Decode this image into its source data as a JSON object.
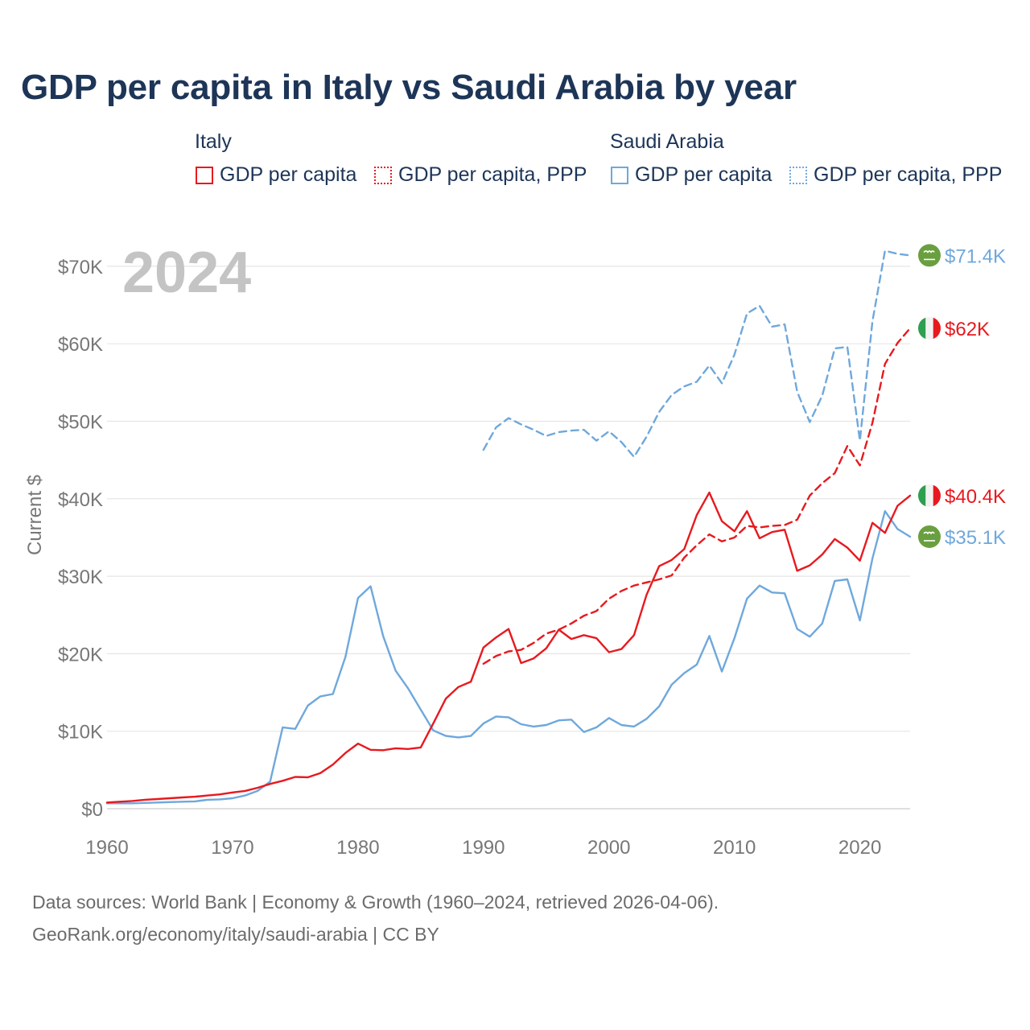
{
  "title": "GDP per capita in Italy vs Saudi Arabia by year",
  "legend": {
    "groups": [
      {
        "name": "Italy",
        "items": [
          "GDP per capita",
          "GDP per capita, PPP"
        ]
      },
      {
        "name": "Saudi Arabia",
        "items": [
          "GDP per capita",
          "GDP per capita, PPP"
        ]
      }
    ]
  },
  "colors": {
    "italy": "#e8191e",
    "saudi": "#6fa8dc",
    "saudi_flag": "#6a9f3f",
    "italy_flag_green": "#2e9e4f"
  },
  "year_watermark": "2024",
  "footer": {
    "line1": "Data sources: World Bank | Economy & Growth (1960–2024, retrieved 2026-04-06).",
    "line2": "GeoRank.org/economy/italy/saudi-arabia | CC BY"
  },
  "end_labels": {
    "saudi_ppp": "$71.4K",
    "italy_ppp": "$62K",
    "italy_gdp": "$40.4K",
    "saudi_gdp": "$35.1K"
  },
  "chart_data": {
    "type": "line",
    "title": "GDP per capita in Italy vs Saudi Arabia by year",
    "xlabel": "",
    "ylabel": "Current $",
    "xlim": [
      1960,
      2024
    ],
    "ylim": [
      0,
      75000
    ],
    "x_ticks": [
      1960,
      1970,
      1980,
      1990,
      2000,
      2010,
      2020
    ],
    "y_ticks": [
      0,
      10000,
      20000,
      30000,
      40000,
      50000,
      60000,
      70000
    ],
    "y_tick_labels": [
      "$0",
      "$10K",
      "$20K",
      "$30K",
      "$40K",
      "$50K",
      "$60K",
      "$70K"
    ],
    "series": [
      {
        "name": "Italy GDP per capita",
        "country": "italy",
        "dashed": false,
        "x_start": 1960,
        "values": [
          800,
          900,
          1000,
          1150,
          1250,
          1350,
          1450,
          1550,
          1700,
          1850,
          2100,
          2300,
          2700,
          3200,
          3600,
          4100,
          4050,
          4600,
          5700,
          7200,
          8400,
          7600,
          7550,
          7800,
          7700,
          7900,
          11000,
          14200,
          15700,
          16400,
          20800,
          22100,
          23200,
          18800,
          19400,
          20700,
          23100,
          21900,
          22400,
          22000,
          20200,
          20600,
          22400,
          27600,
          31300,
          32100,
          33500,
          37900,
          40800,
          37100,
          35800,
          38400,
          34900,
          35700,
          36000,
          30700,
          31400,
          32800,
          34800,
          33700,
          32000,
          36900,
          35600,
          39100,
          40400
        ]
      },
      {
        "name": "Italy GDP per capita, PPP",
        "country": "italy",
        "dashed": true,
        "x_start": 1990,
        "values": [
          18700,
          19700,
          20300,
          20500,
          21400,
          22600,
          23100,
          23900,
          24900,
          25500,
          27100,
          28100,
          28800,
          29200,
          29600,
          30100,
          32400,
          34000,
          35400,
          34500,
          35000,
          36500,
          36300,
          36500,
          36600,
          37300,
          40400,
          42000,
          43300,
          46800,
          44300,
          49800,
          57400,
          60100,
          62000
        ]
      },
      {
        "name": "Saudi Arabia GDP per capita",
        "country": "saudi",
        "dashed": false,
        "x_start": 1960,
        "values": [
          700,
          700,
          700,
          750,
          800,
          850,
          900,
          950,
          1150,
          1200,
          1350,
          1700,
          2300,
          3500,
          10500,
          10300,
          13300,
          14500,
          14800,
          19600,
          27200,
          28700,
          22300,
          17800,
          15500,
          12800,
          10100,
          9400,
          9200,
          9400,
          11000,
          11900,
          11800,
          10900,
          10600,
          10800,
          11400,
          11500,
          9900,
          10500,
          11700,
          10800,
          10600,
          11600,
          13200,
          16000,
          17500,
          18600,
          22300,
          17700,
          22000,
          27100,
          28800,
          27900,
          27800,
          23200,
          22200,
          23900,
          29400,
          29600,
          24300,
          32300,
          38400,
          36100,
          35100
        ]
      },
      {
        "name": "Saudi Arabia GDP per capita, PPP",
        "country": "saudi",
        "dashed": true,
        "x_start": 1990,
        "values": [
          46300,
          49200,
          50400,
          49600,
          48900,
          48100,
          48600,
          48800,
          48900,
          47500,
          48700,
          47300,
          45400,
          48000,
          51200,
          53400,
          54500,
          55100,
          57200,
          54900,
          58600,
          63900,
          64900,
          62200,
          62500,
          53800,
          49900,
          53300,
          59400,
          59600,
          47500,
          62900,
          72000,
          71600,
          71400
        ]
      }
    ]
  }
}
